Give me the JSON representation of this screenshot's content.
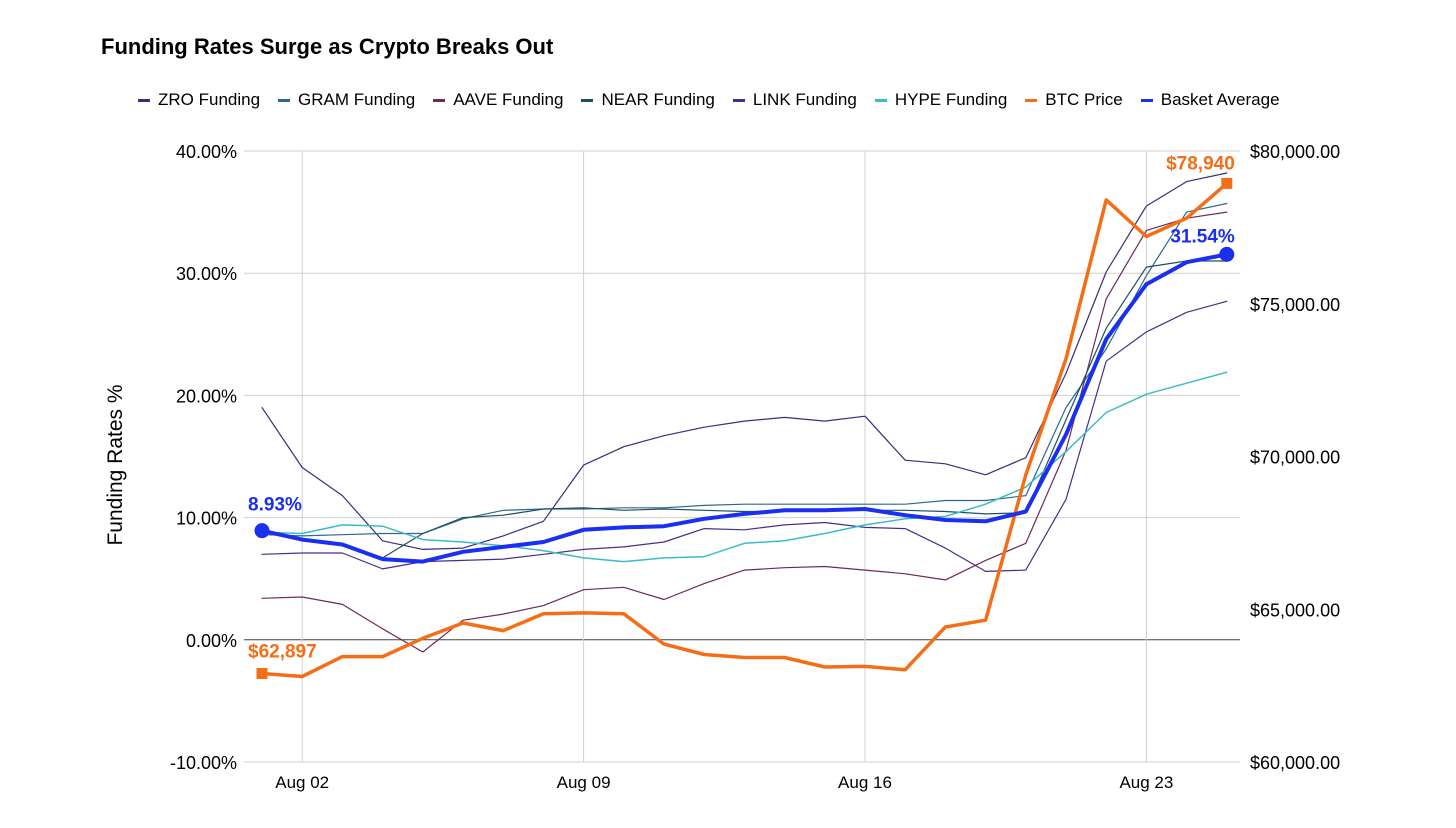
{
  "chart_data": {
    "type": "line",
    "title": "Funding Rates Surge as Crypto Breaks Out",
    "ylabel_left": "Funding Rates %",
    "ylabel_right": "",
    "legend_position": "top",
    "grid": true,
    "y_left": {
      "min": -10,
      "max": 40,
      "ticks": [
        "40.00%",
        "30.00%",
        "20.00%",
        "10.00%",
        "0.00%",
        "-10.00%"
      ],
      "tick_values": [
        40,
        30,
        20,
        10,
        0,
        -10
      ]
    },
    "y_right": {
      "min": 60000,
      "max": 80000,
      "ticks": [
        "$80,000.00",
        "$75,000.00",
        "$70,000.00",
        "$65,000.00",
        "$60,000.00"
      ],
      "tick_values": [
        80000,
        75000,
        70000,
        65000,
        60000
      ]
    },
    "x_ticks": [
      {
        "label": "Aug 02",
        "index": 1
      },
      {
        "label": "Aug 09",
        "index": 8
      },
      {
        "label": "Aug 16",
        "index": 15
      },
      {
        "label": "Aug 23",
        "index": 22
      }
    ],
    "x_count": 25,
    "series": [
      {
        "name": "ZRO Funding",
        "color": "#3b2d7a",
        "axis": "left",
        "width": 1.2,
        "values": [
          19.0,
          14.1,
          11.8,
          8.1,
          7.4,
          7.5,
          8.5,
          9.7,
          14.3,
          15.8,
          16.7,
          17.4,
          17.9,
          18.2,
          17.9,
          18.3,
          14.7,
          14.4,
          13.5,
          14.9,
          21.8,
          30.1,
          35.5,
          37.5,
          38.2
        ]
      },
      {
        "name": "GRAM Funding",
        "color": "#2a6a8a",
        "axis": "left",
        "width": 1.2,
        "values": [
          8.6,
          8.5,
          8.6,
          8.7,
          8.7,
          9.9,
          10.6,
          10.7,
          10.7,
          10.8,
          10.8,
          11.0,
          11.1,
          11.1,
          11.1,
          11.1,
          11.1,
          11.4,
          11.4,
          11.8,
          19.0,
          23.8,
          29.8,
          35.0,
          35.7
        ]
      },
      {
        "name": "AAVE Funding",
        "color": "#6b2a5e",
        "axis": "left",
        "width": 1.2,
        "values": [
          3.4,
          3.5,
          2.9,
          0.9,
          -1.0,
          1.6,
          2.1,
          2.8,
          4.1,
          4.3,
          3.3,
          4.6,
          5.7,
          5.9,
          6.0,
          5.7,
          5.4,
          4.9,
          6.5,
          7.9,
          15.5,
          27.9,
          33.5,
          34.5,
          35.0
        ]
      },
      {
        "name": "NEAR Funding",
        "color": "#1e5060",
        "axis": "left",
        "width": 1.2,
        "values": [
          8.9,
          8.3,
          7.8,
          6.7,
          8.7,
          10.0,
          10.2,
          10.7,
          10.8,
          10.6,
          10.7,
          10.6,
          10.5,
          10.5,
          10.6,
          10.6,
          10.6,
          10.5,
          10.3,
          10.4,
          18.0,
          25.5,
          30.5,
          31.0,
          31.0
        ]
      },
      {
        "name": "LINK Funding",
        "color": "#4a2d8a",
        "axis": "left",
        "width": 1.2,
        "values": [
          7.0,
          7.1,
          7.1,
          5.8,
          6.4,
          6.5,
          6.6,
          7.0,
          7.4,
          7.6,
          8.0,
          9.1,
          9.0,
          9.4,
          9.6,
          9.2,
          9.1,
          7.5,
          5.6,
          5.7,
          11.5,
          22.8,
          25.2,
          26.8,
          27.7
        ]
      },
      {
        "name": "HYPE Funding",
        "color": "#3bbcc4",
        "axis": "left",
        "width": 1.5,
        "values": [
          8.8,
          8.7,
          9.4,
          9.3,
          8.2,
          8.0,
          7.7,
          7.3,
          6.7,
          6.4,
          6.7,
          6.8,
          7.9,
          8.1,
          8.7,
          9.4,
          9.9,
          10.1,
          11.1,
          12.5,
          15.4,
          18.6,
          20.1,
          21.0,
          21.9
        ]
      },
      {
        "name": "BTC Price",
        "color": "#f36e16",
        "axis": "right",
        "width": 3.5,
        "values": [
          62897,
          62800,
          63450,
          63450,
          64050,
          64550,
          64300,
          64850,
          64880,
          64850,
          63860,
          63520,
          63420,
          63420,
          63110,
          63130,
          63020,
          64420,
          64640,
          69400,
          73200,
          78400,
          77200,
          77800,
          78940
        ]
      },
      {
        "name": "Basket Average",
        "color": "#1a2ff0",
        "axis": "left",
        "width": 4,
        "values": [
          8.93,
          8.2,
          7.8,
          6.6,
          6.4,
          7.2,
          7.6,
          8.0,
          9.0,
          9.2,
          9.3,
          9.9,
          10.3,
          10.6,
          10.6,
          10.7,
          10.2,
          9.8,
          9.7,
          10.5,
          16.8,
          24.6,
          29.1,
          30.9,
          31.54
        ]
      }
    ],
    "annotations": [
      {
        "text": "8.93%",
        "series": "Basket Average",
        "index": 0,
        "color": "#1a2ff0"
      },
      {
        "text": "31.54%",
        "series": "Basket Average",
        "index": 24,
        "color": "#1a2ff0"
      },
      {
        "text": "$62,897",
        "series": "BTC Price",
        "index": 0,
        "color": "#f36e16"
      },
      {
        "text": "$78,940",
        "series": "BTC Price",
        "index": 24,
        "color": "#f36e16"
      }
    ]
  }
}
